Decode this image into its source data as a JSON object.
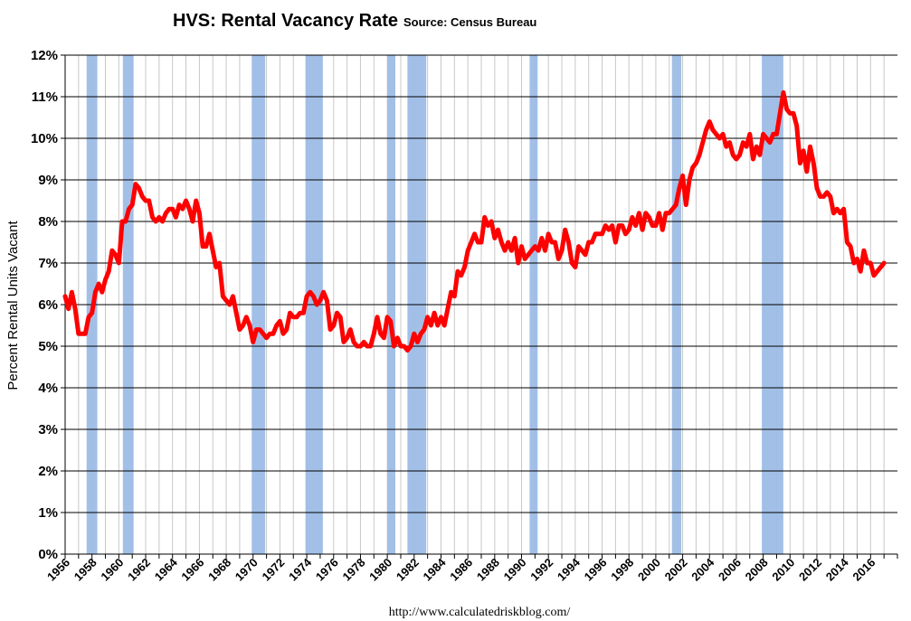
{
  "chart_data": {
    "type": "line",
    "title": "HVS: Rental Vacancy Rate",
    "subtitle": "Source: Census Bureau",
    "xlabel": "",
    "ylabel": "Percent Rental Units Vacant",
    "footer": "http://www.calculatedriskblog.com/",
    "xlim": [
      1956,
      2018
    ],
    "ylim": [
      0,
      12
    ],
    "grid": true,
    "y_tick_labels": [
      "0%",
      "1%",
      "2%",
      "3%",
      "4%",
      "5%",
      "6%",
      "7%",
      "8%",
      "9%",
      "10%",
      "11%",
      "12%"
    ],
    "x_tick_labels": [
      "1956",
      "1958",
      "1960",
      "1962",
      "1964",
      "1966",
      "1968",
      "1970",
      "1972",
      "1974",
      "1976",
      "1978",
      "1980",
      "1982",
      "1984",
      "1986",
      "1988",
      "1990",
      "1992",
      "1994",
      "1996",
      "1998",
      "2000",
      "2002",
      "2004",
      "2006",
      "2008",
      "2010",
      "2012",
      "2014",
      "2016"
    ],
    "recession_color": "#9dbde6",
    "line_color": "#ff0000",
    "recessions": [
      [
        1957.6,
        1958.4
      ],
      [
        1960.3,
        1961.1
      ],
      [
        1969.9,
        1970.9
      ],
      [
        1973.9,
        1975.2
      ],
      [
        1980.0,
        1980.6
      ],
      [
        1981.5,
        1982.9
      ],
      [
        1990.6,
        1991.2
      ],
      [
        2001.2,
        2001.9
      ],
      [
        2007.9,
        2009.5
      ]
    ],
    "series": [
      {
        "values": [
          [
            1956.0,
            6.2
          ],
          [
            1956.25,
            5.9
          ],
          [
            1956.5,
            6.3
          ],
          [
            1956.75,
            5.9
          ],
          [
            1957.0,
            5.3
          ],
          [
            1957.25,
            5.3
          ],
          [
            1957.5,
            5.3
          ],
          [
            1957.75,
            5.7
          ],
          [
            1958.0,
            5.8
          ],
          [
            1958.25,
            6.3
          ],
          [
            1958.5,
            6.5
          ],
          [
            1958.75,
            6.3
          ],
          [
            1959.0,
            6.6
          ],
          [
            1959.25,
            6.8
          ],
          [
            1959.5,
            7.3
          ],
          [
            1959.75,
            7.2
          ],
          [
            1960.0,
            7.0
          ],
          [
            1960.25,
            8.0
          ],
          [
            1960.5,
            8.0
          ],
          [
            1960.75,
            8.3
          ],
          [
            1961.0,
            8.4
          ],
          [
            1961.25,
            8.9
          ],
          [
            1961.5,
            8.8
          ],
          [
            1961.75,
            8.6
          ],
          [
            1962.0,
            8.5
          ],
          [
            1962.25,
            8.5
          ],
          [
            1962.5,
            8.1
          ],
          [
            1962.75,
            8.0
          ],
          [
            1963.0,
            8.1
          ],
          [
            1963.25,
            8.0
          ],
          [
            1963.5,
            8.2
          ],
          [
            1963.75,
            8.3
          ],
          [
            1964.0,
            8.3
          ],
          [
            1964.25,
            8.1
          ],
          [
            1964.5,
            8.4
          ],
          [
            1964.75,
            8.3
          ],
          [
            1965.0,
            8.5
          ],
          [
            1965.25,
            8.3
          ],
          [
            1965.5,
            8.0
          ],
          [
            1965.75,
            8.5
          ],
          [
            1966.0,
            8.2
          ],
          [
            1966.25,
            7.4
          ],
          [
            1966.5,
            7.4
          ],
          [
            1966.75,
            7.7
          ],
          [
            1967.0,
            7.3
          ],
          [
            1967.25,
            6.9
          ],
          [
            1967.5,
            7.0
          ],
          [
            1967.75,
            6.2
          ],
          [
            1968.0,
            6.1
          ],
          [
            1968.25,
            6.0
          ],
          [
            1968.5,
            6.2
          ],
          [
            1968.75,
            5.8
          ],
          [
            1969.0,
            5.4
          ],
          [
            1969.25,
            5.5
          ],
          [
            1969.5,
            5.7
          ],
          [
            1969.75,
            5.5
          ],
          [
            1970.0,
            5.1
          ],
          [
            1970.25,
            5.4
          ],
          [
            1970.5,
            5.4
          ],
          [
            1970.75,
            5.3
          ],
          [
            1971.0,
            5.2
          ],
          [
            1971.25,
            5.3
          ],
          [
            1971.5,
            5.3
          ],
          [
            1971.75,
            5.5
          ],
          [
            1972.0,
            5.6
          ],
          [
            1972.25,
            5.3
          ],
          [
            1972.5,
            5.4
          ],
          [
            1972.75,
            5.8
          ],
          [
            1973.0,
            5.7
          ],
          [
            1973.25,
            5.7
          ],
          [
            1973.5,
            5.8
          ],
          [
            1973.75,
            5.8
          ],
          [
            1974.0,
            6.2
          ],
          [
            1974.25,
            6.3
          ],
          [
            1974.5,
            6.2
          ],
          [
            1974.75,
            6.0
          ],
          [
            1975.0,
            6.1
          ],
          [
            1975.25,
            6.3
          ],
          [
            1975.5,
            6.1
          ],
          [
            1975.75,
            5.4
          ],
          [
            1976.0,
            5.5
          ],
          [
            1976.25,
            5.8
          ],
          [
            1976.5,
            5.7
          ],
          [
            1976.75,
            5.1
          ],
          [
            1977.0,
            5.2
          ],
          [
            1977.25,
            5.4
          ],
          [
            1977.5,
            5.1
          ],
          [
            1977.75,
            5.0
          ],
          [
            1978.0,
            5.0
          ],
          [
            1978.25,
            5.1
          ],
          [
            1978.5,
            5.0
          ],
          [
            1978.75,
            5.0
          ],
          [
            1979.0,
            5.3
          ],
          [
            1979.25,
            5.7
          ],
          [
            1979.5,
            5.3
          ],
          [
            1979.75,
            5.2
          ],
          [
            1980.0,
            5.7
          ],
          [
            1980.25,
            5.6
          ],
          [
            1980.5,
            5.0
          ],
          [
            1980.75,
            5.2
          ],
          [
            1981.0,
            5.0
          ],
          [
            1981.25,
            5.0
          ],
          [
            1981.5,
            4.9
          ],
          [
            1981.75,
            5.0
          ],
          [
            1982.0,
            5.3
          ],
          [
            1982.25,
            5.1
          ],
          [
            1982.5,
            5.3
          ],
          [
            1982.75,
            5.4
          ],
          [
            1983.0,
            5.7
          ],
          [
            1983.25,
            5.5
          ],
          [
            1983.5,
            5.8
          ],
          [
            1983.75,
            5.5
          ],
          [
            1984.0,
            5.7
          ],
          [
            1984.25,
            5.5
          ],
          [
            1984.5,
            5.9
          ],
          [
            1984.75,
            6.3
          ],
          [
            1985.0,
            6.2
          ],
          [
            1985.25,
            6.8
          ],
          [
            1985.5,
            6.7
          ],
          [
            1985.75,
            6.9
          ],
          [
            1986.0,
            7.3
          ],
          [
            1986.25,
            7.5
          ],
          [
            1986.5,
            7.7
          ],
          [
            1986.75,
            7.5
          ],
          [
            1987.0,
            7.5
          ],
          [
            1987.25,
            8.1
          ],
          [
            1987.5,
            7.9
          ],
          [
            1987.75,
            8.0
          ],
          [
            1988.0,
            7.6
          ],
          [
            1988.25,
            7.8
          ],
          [
            1988.5,
            7.5
          ],
          [
            1988.75,
            7.3
          ],
          [
            1989.0,
            7.5
          ],
          [
            1989.25,
            7.3
          ],
          [
            1989.5,
            7.6
          ],
          [
            1989.75,
            7.0
          ],
          [
            1990.0,
            7.4
          ],
          [
            1990.25,
            7.1
          ],
          [
            1990.5,
            7.2
          ],
          [
            1990.75,
            7.3
          ],
          [
            1991.0,
            7.4
          ],
          [
            1991.25,
            7.3
          ],
          [
            1991.5,
            7.6
          ],
          [
            1991.75,
            7.3
          ],
          [
            1992.0,
            7.7
          ],
          [
            1992.25,
            7.5
          ],
          [
            1992.5,
            7.5
          ],
          [
            1992.75,
            7.1
          ],
          [
            1993.0,
            7.3
          ],
          [
            1993.25,
            7.8
          ],
          [
            1993.5,
            7.5
          ],
          [
            1993.75,
            7.0
          ],
          [
            1994.0,
            6.9
          ],
          [
            1994.25,
            7.4
          ],
          [
            1994.5,
            7.3
          ],
          [
            1994.75,
            7.2
          ],
          [
            1995.0,
            7.5
          ],
          [
            1995.25,
            7.5
          ],
          [
            1995.5,
            7.7
          ],
          [
            1995.75,
            7.7
          ],
          [
            1996.0,
            7.7
          ],
          [
            1996.25,
            7.9
          ],
          [
            1996.5,
            7.8
          ],
          [
            1996.75,
            7.9
          ],
          [
            1997.0,
            7.5
          ],
          [
            1997.25,
            7.9
          ],
          [
            1997.5,
            7.9
          ],
          [
            1997.75,
            7.7
          ],
          [
            1998.0,
            7.8
          ],
          [
            1998.25,
            8.1
          ],
          [
            1998.5,
            7.9
          ],
          [
            1998.75,
            8.2
          ],
          [
            1999.0,
            7.8
          ],
          [
            1999.25,
            8.2
          ],
          [
            1999.5,
            8.1
          ],
          [
            1999.75,
            7.9
          ],
          [
            2000.0,
            7.9
          ],
          [
            2000.25,
            8.2
          ],
          [
            2000.5,
            7.8
          ],
          [
            2000.75,
            8.2
          ],
          [
            2001.0,
            8.2
          ],
          [
            2001.25,
            8.3
          ],
          [
            2001.5,
            8.4
          ],
          [
            2001.75,
            8.8
          ],
          [
            2002.0,
            9.1
          ],
          [
            2002.25,
            8.4
          ],
          [
            2002.5,
            9.0
          ],
          [
            2002.75,
            9.3
          ],
          [
            2003.0,
            9.4
          ],
          [
            2003.25,
            9.6
          ],
          [
            2003.5,
            9.9
          ],
          [
            2003.75,
            10.2
          ],
          [
            2004.0,
            10.4
          ],
          [
            2004.25,
            10.2
          ],
          [
            2004.5,
            10.1
          ],
          [
            2004.75,
            10.0
          ],
          [
            2005.0,
            10.1
          ],
          [
            2005.25,
            9.8
          ],
          [
            2005.5,
            9.9
          ],
          [
            2005.75,
            9.6
          ],
          [
            2006.0,
            9.5
          ],
          [
            2006.25,
            9.6
          ],
          [
            2006.5,
            9.9
          ],
          [
            2006.75,
            9.8
          ],
          [
            2007.0,
            10.1
          ],
          [
            2007.25,
            9.5
          ],
          [
            2007.5,
            9.8
          ],
          [
            2007.75,
            9.6
          ],
          [
            2008.0,
            10.1
          ],
          [
            2008.25,
            10.0
          ],
          [
            2008.5,
            9.9
          ],
          [
            2008.75,
            10.1
          ],
          [
            2009.0,
            10.1
          ],
          [
            2009.25,
            10.6
          ],
          [
            2009.5,
            11.1
          ],
          [
            2009.75,
            10.7
          ],
          [
            2010.0,
            10.6
          ],
          [
            2010.25,
            10.6
          ],
          [
            2010.5,
            10.3
          ],
          [
            2010.75,
            9.4
          ],
          [
            2011.0,
            9.7
          ],
          [
            2011.25,
            9.2
          ],
          [
            2011.5,
            9.8
          ],
          [
            2011.75,
            9.4
          ],
          [
            2012.0,
            8.8
          ],
          [
            2012.25,
            8.6
          ],
          [
            2012.5,
            8.6
          ],
          [
            2012.75,
            8.7
          ],
          [
            2013.0,
            8.6
          ],
          [
            2013.25,
            8.2
          ],
          [
            2013.5,
            8.3
          ],
          [
            2013.75,
            8.2
          ],
          [
            2014.0,
            8.3
          ],
          [
            2014.25,
            7.5
          ],
          [
            2014.5,
            7.4
          ],
          [
            2014.75,
            7.0
          ],
          [
            2015.0,
            7.1
          ],
          [
            2015.25,
            6.8
          ],
          [
            2015.5,
            7.3
          ],
          [
            2015.75,
            7.0
          ],
          [
            2016.0,
            7.0
          ],
          [
            2016.25,
            6.7
          ],
          [
            2016.5,
            6.8
          ],
          [
            2016.75,
            6.9
          ],
          [
            2017.0,
            7.0
          ]
        ]
      }
    ]
  }
}
